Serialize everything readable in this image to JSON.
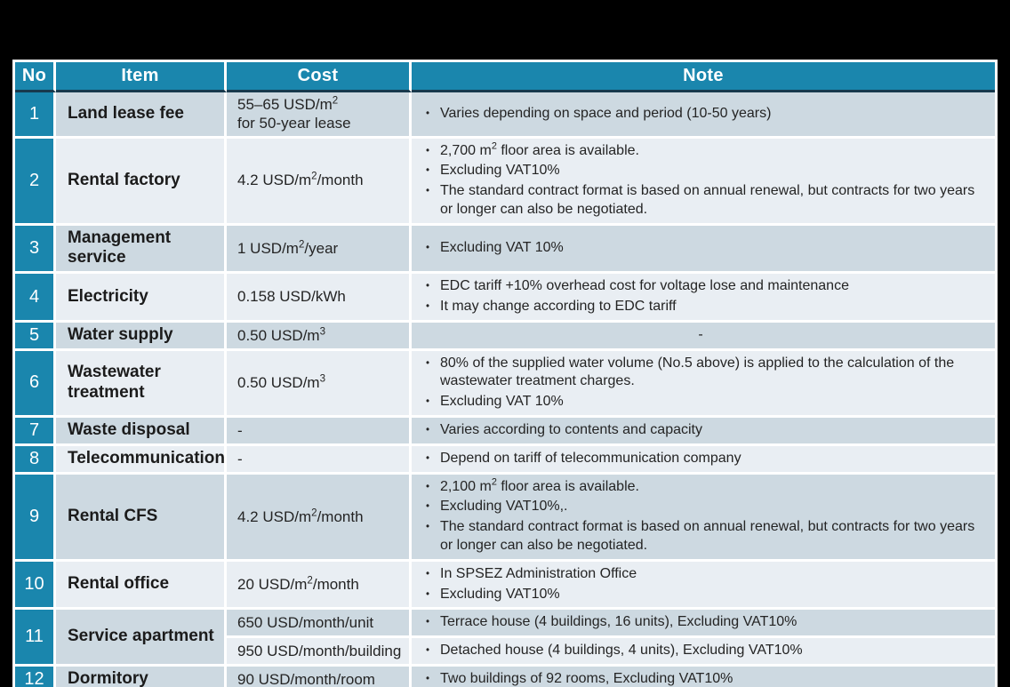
{
  "page": {
    "background_color": "#000000",
    "bullet": "•"
  },
  "table": {
    "colors": {
      "header_bg": "#1a86ad",
      "header_text": "#ffffff",
      "header_underline": "#17394d",
      "band_dark": "#cdd9e1",
      "band_light": "#e9eef3",
      "grid_line": "#ffffff",
      "body_text": "#242424"
    },
    "headers": {
      "no": "No",
      "item": "Item",
      "cost": "Cost",
      "note": "Note"
    },
    "rows": [
      {
        "no": "1",
        "item": "Land lease fee",
        "cost": {
          "pre": "55–65 USD/m",
          "sup": "2"
        },
        "cost2": "for 50-year lease",
        "notes": [
          {
            "pre": "Varies depending on space and period (10-50 years)"
          }
        ]
      },
      {
        "no": "2",
        "item": "Rental factory",
        "cost": {
          "pre": "4.2 USD/m",
          "sup": "2",
          "post": "/month"
        },
        "notes": [
          {
            "pre": "2,700 m",
            "sup": "2",
            "post": " floor area is available."
          },
          {
            "pre": "Excluding VAT10%"
          },
          {
            "pre": "The standard contract format is based on annual renewal, but contracts for two years or longer can also be negotiated."
          }
        ]
      },
      {
        "no": "3",
        "item": "Management service",
        "cost": {
          "pre": "1 USD/m",
          "sup": "2",
          "post": "/year"
        },
        "notes": [
          {
            "pre": "Excluding VAT 10%"
          }
        ]
      },
      {
        "no": "4",
        "item": "Electricity",
        "cost": {
          "pre": "0.158 USD/kWh"
        },
        "notes": [
          {
            "pre": "EDC tariff +10% overhead cost for voltage lose and maintenance"
          },
          {
            "pre": "It may change according to EDC tariff"
          }
        ]
      },
      {
        "no": "5",
        "item": "Water supply",
        "cost": {
          "pre": "0.50 USD/m",
          "sup": "3"
        },
        "note_center": "-"
      },
      {
        "no": "6",
        "item": "Wastewater treatment",
        "cost": {
          "pre": "0.50 USD/m",
          "sup": "3"
        },
        "notes": [
          {
            "pre": "80% of the supplied water volume (No.5 above) is applied to the calculation of the wastewater treatment charges."
          },
          {
            "pre": "Excluding VAT 10%"
          }
        ]
      },
      {
        "no": "7",
        "item": "Waste disposal",
        "cost": {
          "pre": "-"
        },
        "notes": [
          {
            "pre": "Varies according to contents and capacity"
          }
        ]
      },
      {
        "no": "8",
        "item": "Telecommunication",
        "cost": {
          "pre": "-"
        },
        "notes": [
          {
            "pre": "Depend on tariff of telecommunication company"
          }
        ]
      },
      {
        "no": "9",
        "item": "Rental CFS",
        "cost": {
          "pre": "4.2 USD/m",
          "sup": "2",
          "post": "/month"
        },
        "notes": [
          {
            "pre": "2,100 m",
            "sup": "2",
            "post": " floor area is available."
          },
          {
            "pre": "Excluding VAT10%,."
          },
          {
            "pre": "The standard contract format is based on annual renewal, but contracts for two years or longer can also be negotiated."
          }
        ]
      },
      {
        "no": "10",
        "item": "Rental office",
        "cost": {
          "pre": "20 USD/m",
          "sup": "2",
          "post": "/month"
        },
        "notes": [
          {
            "pre": "In SPSEZ Administration Office"
          },
          {
            "pre": "Excluding VAT10%"
          }
        ]
      },
      {
        "no": "11",
        "item": "Service apartment",
        "sub": [
          {
            "cost": {
              "pre": "650 USD/month/unit"
            },
            "note": {
              "pre": "Terrace house (4 buildings, 16 units), Excluding VAT10%"
            }
          },
          {
            "cost": {
              "pre": "950 USD/month/building"
            },
            "note": {
              "pre": "Detached house (4 buildings, 4 units), Excluding VAT10%"
            }
          }
        ]
      },
      {
        "no": "12",
        "item": "Dormitory",
        "cost": {
          "pre": "90 USD/month/room"
        },
        "notes": [
          {
            "pre": "Two buildings of 92 rooms, Excluding VAT10%"
          }
        ]
      }
    ]
  }
}
